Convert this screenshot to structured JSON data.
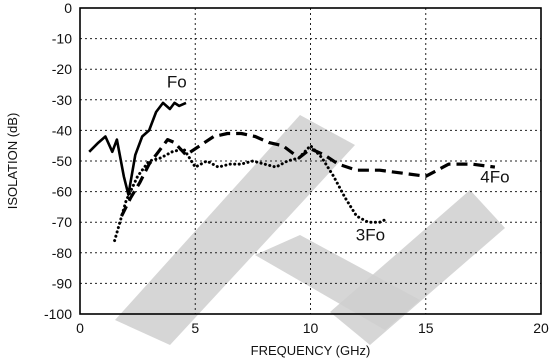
{
  "chart_data": {
    "type": "line",
    "title": "",
    "xlabel": "FREQUENCY (GHz)",
    "ylabel": "ISOLATION (dB)",
    "xlim": [
      0,
      20
    ],
    "ylim": [
      -100,
      0
    ],
    "x_ticks": [
      "0",
      "5",
      "10",
      "15",
      "20"
    ],
    "y_ticks": [
      "0",
      "-10",
      "-20",
      "-30",
      "-40",
      "-50",
      "-60",
      "-70",
      "-80",
      "-90",
      "-100"
    ],
    "grid": true,
    "series": [
      {
        "name": "Fo",
        "style": "solid",
        "x": [
          0.4,
          0.8,
          1.1,
          1.4,
          1.6,
          1.9,
          2.1,
          2.4,
          2.7,
          3.0,
          3.3,
          3.6,
          3.9,
          4.1,
          4.3,
          4.6
        ],
        "y": [
          -47,
          -44,
          -42,
          -47,
          -43,
          -55,
          -61,
          -48,
          -42,
          -40,
          -34,
          -31,
          -33,
          -31,
          -32,
          -31
        ]
      },
      {
        "name": "4Fo",
        "style": "dashed",
        "x": [
          1.8,
          2.2,
          2.6,
          3.0,
          3.4,
          3.8,
          4.1,
          4.6,
          5.2,
          5.8,
          6.4,
          7.0,
          7.6,
          8.2,
          8.8,
          9.5,
          10.0,
          10.6,
          11.2,
          12.0,
          13.0,
          14.0,
          15.0,
          16.0,
          17.0,
          18.0
        ],
        "y": [
          -68,
          -62,
          -57,
          -51,
          -47,
          -43,
          -44,
          -48,
          -45,
          -42,
          -41,
          -41,
          -42,
          -44,
          -45,
          -49,
          -46,
          -48,
          -51,
          -53,
          -53,
          -54,
          -55,
          -51,
          -51,
          -52
        ]
      },
      {
        "name": "3Fo",
        "style": "dotted",
        "x": [
          1.5,
          2.0,
          2.5,
          3.0,
          3.5,
          4.0,
          4.5,
          5.0,
          5.5,
          6.0,
          6.5,
          7.0,
          7.5,
          8.0,
          8.5,
          9.0,
          9.5,
          10.0,
          10.5,
          11.0,
          11.5,
          12.0,
          12.5,
          13.0,
          13.3
        ],
        "y": [
          -76,
          -63,
          -55,
          -50,
          -49,
          -47,
          -46,
          -52,
          -50,
          -52,
          -51,
          -51,
          -50,
          -51,
          -52,
          -50,
          -49,
          -45,
          -49,
          -55,
          -62,
          -68,
          -70,
          -70,
          -69
        ]
      }
    ],
    "annotations": [
      {
        "text": "Fo",
        "series": "Fo",
        "x": 4.2,
        "y": -26
      },
      {
        "text": "4Fo",
        "series": "4Fo",
        "x": 18.0,
        "y": -57
      },
      {
        "text": "3Fo",
        "series": "3Fo",
        "x": 12.6,
        "y": -76
      }
    ]
  }
}
